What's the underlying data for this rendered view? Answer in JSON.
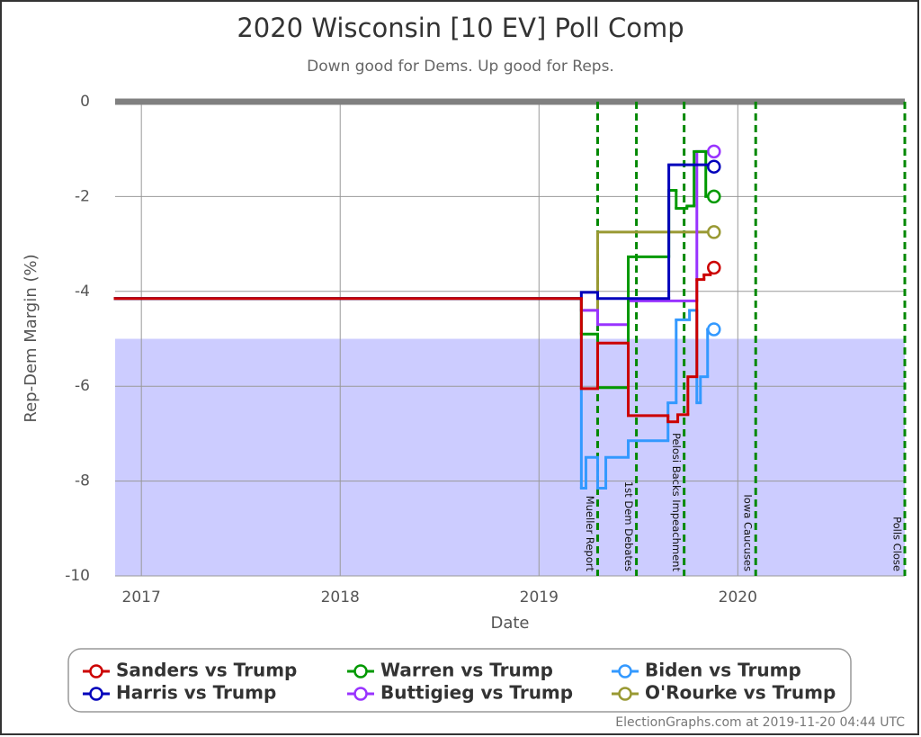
{
  "chart_data": {
    "type": "step-line",
    "title": "2020 Wisconsin [10 EV] Poll Comp",
    "subtitle": "Down good for Dems. Up good for Reps.",
    "x_label": "Date",
    "y_label": "Rep-Dem Margin (%)",
    "xlim": [
      2016.868,
      2020.84
    ],
    "xticks": [
      2017,
      2018,
      2019,
      2020
    ],
    "ylim": [
      -10,
      0
    ],
    "yticks": [
      0,
      -2,
      -4,
      -6,
      -8,
      -10
    ],
    "grid": true,
    "shaded_range": [
      -10,
      -5
    ],
    "shaded_color": "#ccccff",
    "events": [
      {
        "label": "Mueller Report",
        "x": 2019.295
      },
      {
        "label": "1st Dem Debates",
        "x": 2019.49
      },
      {
        "label": "Pelosi Backs Impeachment",
        "x": 2019.73
      },
      {
        "label": "Iowa Caucuses",
        "x": 2020.09
      },
      {
        "label": "Polls Close",
        "x": 2020.84
      }
    ],
    "event_color": "#008800",
    "series": [
      {
        "name": "Sanders vs Trump",
        "color": "#cc0000",
        "x": [
          2016.868,
          2019.213,
          2019.295,
          2019.449,
          2019.649,
          2019.698,
          2019.749,
          2019.794,
          2019.83,
          2019.862,
          2019.88
        ],
        "values": [
          -4.15,
          -6.05,
          -5.09,
          -6.62,
          -6.75,
          -6.6,
          -5.8,
          -3.75,
          -3.65,
          -3.5,
          -3.5
        ]
      },
      {
        "name": "Harris vs Trump",
        "color": "#0000bb",
        "x": [
          2016.868,
          2019.213,
          2019.295,
          2019.653,
          2019.88
        ],
        "values": [
          -4.15,
          -4.02,
          -4.15,
          -1.33,
          -1.37
        ]
      },
      {
        "name": "Warren vs Trump",
        "color": "#009900",
        "x": [
          2016.868,
          2019.213,
          2019.295,
          2019.449,
          2019.653,
          2019.69,
          2019.744,
          2019.78,
          2019.839,
          2019.88
        ],
        "values": [
          -4.15,
          -4.9,
          -6.03,
          -3.27,
          -1.87,
          -2.25,
          -2.2,
          -1.05,
          -2.0,
          -2.0
        ]
      },
      {
        "name": "Buttigieg vs Trump",
        "color": "#9933ff",
        "x": [
          2016.868,
          2019.213,
          2019.295,
          2019.449,
          2019.794,
          2019.88
        ],
        "values": [
          -4.15,
          -4.4,
          -4.7,
          -4.2,
          -1.05,
          -1.05
        ]
      },
      {
        "name": "Biden vs Trump",
        "color": "#3399ff",
        "x": [
          2016.868,
          2019.213,
          2019.236,
          2019.295,
          2019.336,
          2019.449,
          2019.649,
          2019.69,
          2019.757,
          2019.794,
          2019.812,
          2019.848,
          2019.88
        ],
        "values": [
          -4.15,
          -8.15,
          -7.5,
          -8.15,
          -7.5,
          -7.15,
          -6.35,
          -4.6,
          -4.4,
          -6.35,
          -5.8,
          -4.8,
          -4.8
        ]
      },
      {
        "name": "O'Rourke vs Trump",
        "color": "#999933",
        "x": [
          2016.868,
          2019.213,
          2019.295,
          2019.88
        ],
        "values": [
          -4.15,
          -4.4,
          -2.75,
          -2.75
        ]
      }
    ],
    "legend_order": [
      0,
      2,
      4,
      1,
      3,
      5
    ],
    "footer": "ElectionGraphs.com at 2019-11-20 04:44 UTC"
  }
}
